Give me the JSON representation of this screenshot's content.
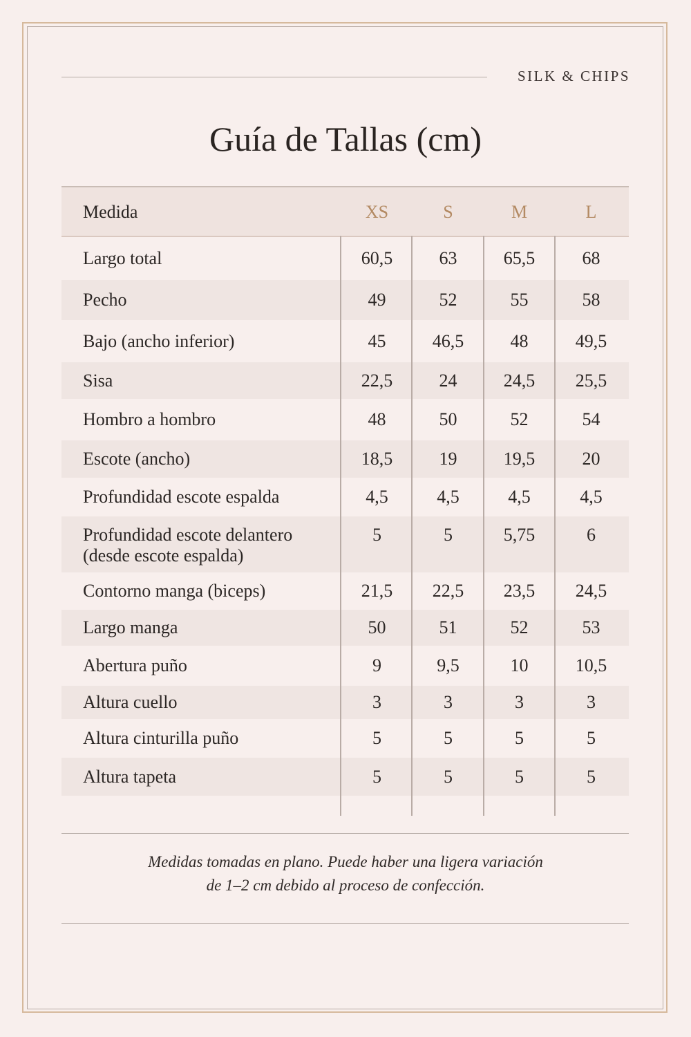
{
  "brand": "SILK & CHIPS",
  "title": "Guía de Tallas (cm)",
  "colors": {
    "background": "#f8efed",
    "accent_gold": "#b38a63",
    "row_shade": "#efe5e2"
  },
  "table": {
    "headers": [
      "Medida",
      "XS",
      "S",
      "M",
      "L"
    ],
    "rows": [
      {
        "label": "Largo total",
        "values": [
          "60,5",
          "63",
          "65,5",
          "68"
        ]
      },
      {
        "label": "Pecho",
        "values": [
          "49",
          "52",
          "55",
          "58"
        ]
      },
      {
        "label": "Bajo (ancho inferior)",
        "values": [
          "45",
          "46,5",
          "48",
          "49,5"
        ]
      },
      {
        "label": "Sisa",
        "values": [
          "22,5",
          "24",
          "24,5",
          "25,5"
        ]
      },
      {
        "label": "Hombro a hombro",
        "values": [
          "48",
          "50",
          "52",
          "54"
        ]
      },
      {
        "label": "Escote (ancho)",
        "values": [
          "18,5",
          "19",
          "19,5",
          "20"
        ]
      },
      {
        "label": "Profundidad escote espalda",
        "values": [
          "4,5",
          "4,5",
          "4,5",
          "4,5"
        ]
      },
      {
        "label": "Profundidad escote delantero",
        "label2": "(desde escote espalda)",
        "values": [
          "5",
          "5",
          "5,75",
          "6"
        ]
      },
      {
        "label": "Contorno manga (biceps)",
        "values": [
          "21,5",
          "22,5",
          "23,5",
          "24,5"
        ]
      },
      {
        "label": "Largo manga",
        "values": [
          "50",
          "51",
          "52",
          "53"
        ]
      },
      {
        "label": "Abertura puño",
        "values": [
          "9",
          "9,5",
          "10",
          "10,5"
        ]
      },
      {
        "label": "Altura cuello",
        "values": [
          "3",
          "3",
          "3",
          "3"
        ]
      },
      {
        "label": "Altura cinturilla puño",
        "values": [
          "5",
          "5",
          "5",
          "5"
        ]
      },
      {
        "label": "Altura tapeta",
        "values": [
          "5",
          "5",
          "5",
          "5"
        ]
      }
    ]
  },
  "note": {
    "line1": "Medidas tomadas en plano. Puede haber una ligera variación",
    "line2": "de 1–2 cm debido al proceso de confección."
  }
}
